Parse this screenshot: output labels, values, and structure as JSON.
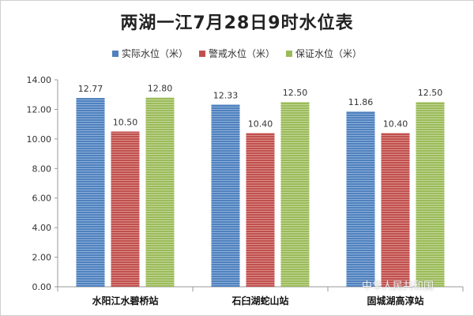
{
  "chart_data": {
    "type": "bar",
    "title": "两湖一江7月28日9时水位表",
    "categories": [
      "水阳江水碧桥站",
      "石臼湖蛇山站",
      "固城湖高淳站"
    ],
    "series": [
      {
        "name": "实际水位（米）",
        "values": [
          12.77,
          12.33,
          11.86
        ],
        "labels": [
          "12.77",
          "12.33",
          "11.86"
        ],
        "color": "#4f81bd"
      },
      {
        "name": "警戒水位（米）",
        "values": [
          10.5,
          10.4,
          10.4
        ],
        "labels": [
          "10.50",
          "10.40",
          "10.40"
        ],
        "color": "#c0504d"
      },
      {
        "name": "保证水位（米）",
        "values": [
          12.8,
          12.5,
          12.5
        ],
        "labels": [
          "12.80",
          "12.50",
          "12.50"
        ],
        "color": "#9bbb59"
      }
    ],
    "yticks": [
      "0.00",
      "2.00",
      "4.00",
      "6.00",
      "8.00",
      "10.00",
      "12.00",
      "14.00"
    ],
    "ylim": [
      0,
      14
    ],
    "grid": false,
    "legend_position": "top"
  },
  "watermark": "中华人民共和国"
}
